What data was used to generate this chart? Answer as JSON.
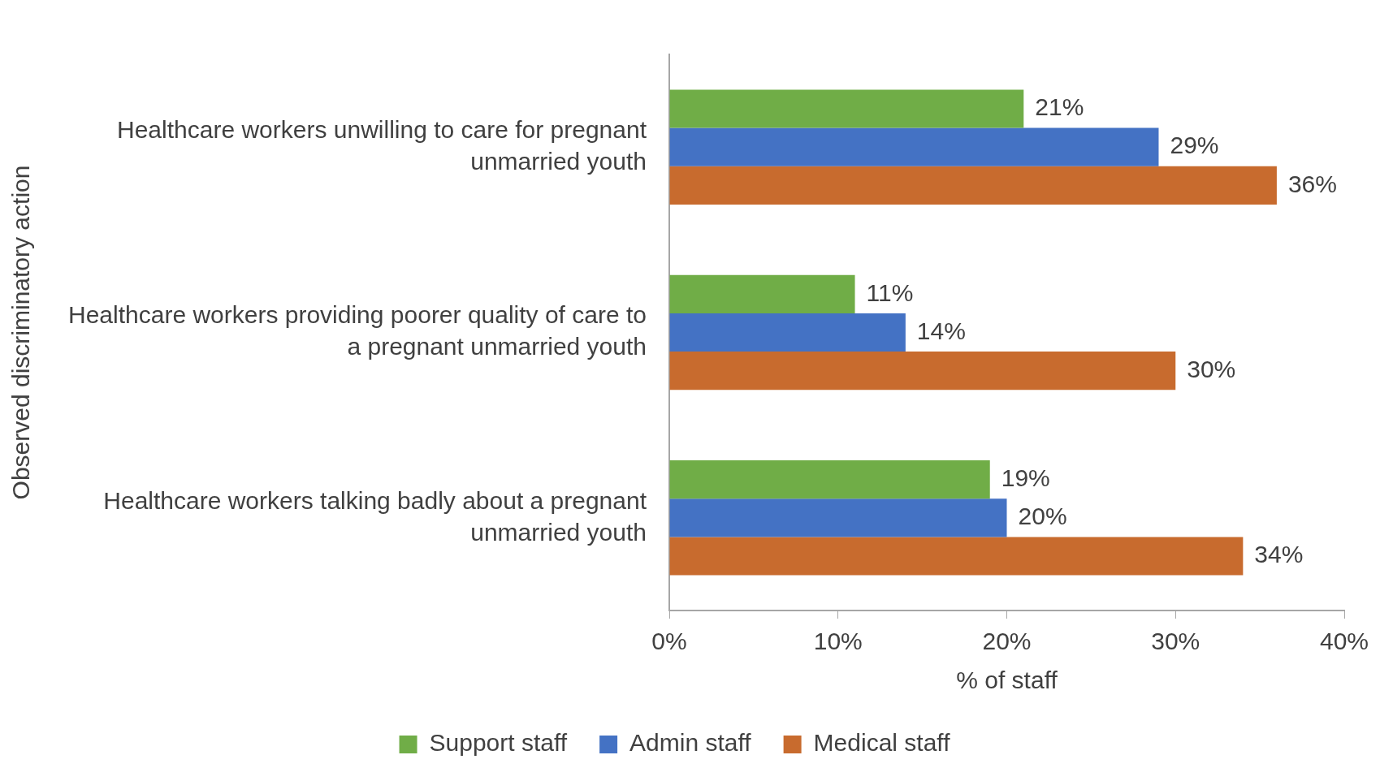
{
  "chart_data": {
    "type": "bar",
    "orientation": "horizontal",
    "xlabel": "% of staff",
    "ylabel": "Observed discriminatory action",
    "categories": [
      "Healthcare workers unwilling to care for pregnant unmarried youth",
      "Healthcare workers providing poorer quality of care to a pregnant unmarried youth",
      "Healthcare workers talking badly about a pregnant unmarried youth"
    ],
    "series": [
      {
        "name": "Support staff",
        "color": "#70ad47",
        "values": [
          21,
          11,
          19
        ],
        "value_labels": [
          "21%",
          "11%",
          "19%"
        ]
      },
      {
        "name": "Admin staff",
        "color": "#4472c4",
        "values": [
          29,
          14,
          20
        ],
        "value_labels": [
          "29%",
          "14%",
          "20%"
        ]
      },
      {
        "name": "Medical staff",
        "color": "#c86b2e",
        "values": [
          36,
          30,
          34
        ],
        "value_labels": [
          "36%",
          "30%",
          "34%"
        ]
      }
    ],
    "xlim": [
      0,
      40
    ],
    "xticks": [
      {
        "value": 0,
        "label": "0%"
      },
      {
        "value": 10,
        "label": "10%"
      },
      {
        "value": 20,
        "label": "20%"
      },
      {
        "value": 30,
        "label": "30%"
      },
      {
        "value": 40,
        "label": "40%"
      }
    ],
    "grid": false,
    "legend": "bottom"
  }
}
